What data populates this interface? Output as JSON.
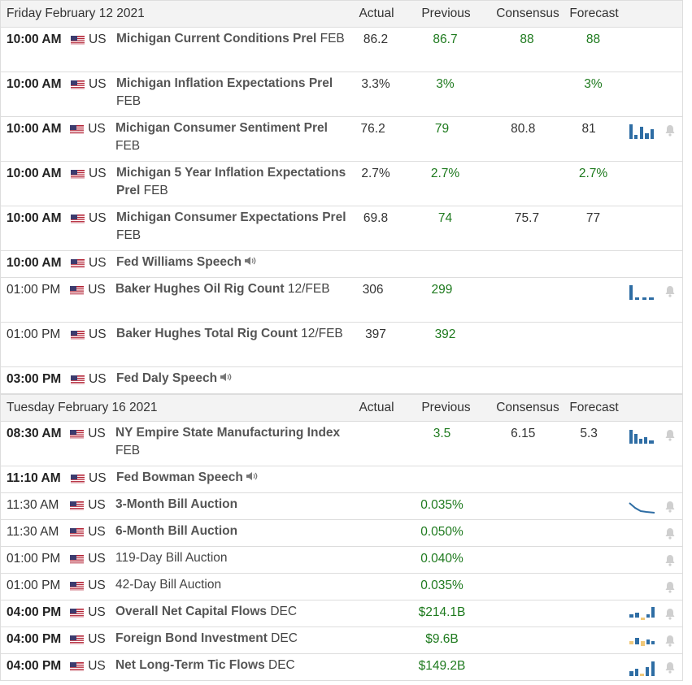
{
  "colors": {
    "accent": "#2e6da4",
    "positive": "#1e7a1e",
    "header_bg": "#f3f3f3",
    "border": "#dddddd"
  },
  "columns": {
    "actual": "Actual",
    "previous": "Previous",
    "consensus": "Consensus",
    "forecast": "Forecast"
  },
  "days": [
    {
      "date": "Friday February 12 2021",
      "events": [
        {
          "time": "10:00 AM",
          "bold": true,
          "country": "US",
          "name": "Michigan Current Conditions Prel",
          "period": "FEB",
          "actual": "86.2",
          "previous": "86.7",
          "consensus": "88",
          "forecast": "88",
          "chart": "",
          "alert": false,
          "speech": false,
          "lines": 2
        },
        {
          "time": "10:00 AM",
          "bold": true,
          "country": "US",
          "name": "Michigan Inflation Expectations Prel",
          "period": "FEB",
          "actual": "3.3%",
          "previous": "3%",
          "consensus": "",
          "forecast": "3%",
          "chart": "",
          "alert": false,
          "speech": false,
          "lines": 2
        },
        {
          "time": "10:00 AM",
          "bold": true,
          "country": "US",
          "name": "Michigan Consumer Sentiment Prel",
          "period": "FEB",
          "actual": "76.2",
          "previous": "79",
          "consensus": "80.8",
          "forecast": "81",
          "chart": "bars-1",
          "alert": true,
          "speech": false,
          "lines": 2
        },
        {
          "time": "10:00 AM",
          "bold": true,
          "country": "US",
          "name": "Michigan 5 Year Inflation Expectations Prel",
          "period": "FEB",
          "actual": "2.7%",
          "previous": "2.7%",
          "consensus": "",
          "forecast": "2.7%",
          "chart": "",
          "alert": false,
          "speech": false,
          "lines": 2
        },
        {
          "time": "10:00 AM",
          "bold": true,
          "country": "US",
          "name": "Michigan Consumer Expectations Prel",
          "period": "FEB",
          "actual": "69.8",
          "previous": "74",
          "consensus": "75.7",
          "forecast": "77",
          "chart": "",
          "alert": false,
          "speech": false,
          "lines": 2
        },
        {
          "time": "10:00 AM",
          "bold": true,
          "country": "US",
          "name": "Fed Williams Speech",
          "period": "",
          "actual": "",
          "previous": "",
          "consensus": "",
          "forecast": "",
          "chart": "",
          "alert": false,
          "speech": true,
          "lines": 1
        },
        {
          "time": "01:00 PM",
          "bold": false,
          "country": "US",
          "name": "Baker Hughes Oil Rig Count",
          "period": "12/FEB",
          "actual": "306",
          "previous": "299",
          "consensus": "",
          "forecast": "",
          "chart": "bars-2",
          "alert": true,
          "speech": false,
          "lines": 2
        },
        {
          "time": "01:00 PM",
          "bold": false,
          "country": "US",
          "name": "Baker Hughes Total Rig Count",
          "period": "12/FEB",
          "actual": "397",
          "previous": "392",
          "consensus": "",
          "forecast": "",
          "chart": "",
          "alert": false,
          "speech": false,
          "lines": 2
        },
        {
          "time": "03:00 PM",
          "bold": true,
          "country": "US",
          "name": "Fed Daly Speech",
          "period": "",
          "actual": "",
          "previous": "",
          "consensus": "",
          "forecast": "",
          "chart": "",
          "alert": false,
          "speech": true,
          "lines": 1
        }
      ]
    },
    {
      "date": "Tuesday February 16 2021",
      "events": [
        {
          "time": "08:30 AM",
          "bold": true,
          "country": "US",
          "name": "NY Empire State Manufacturing Index",
          "period": "FEB",
          "actual": "",
          "previous": "3.5",
          "consensus": "6.15",
          "forecast": "5.3",
          "chart": "bars-3",
          "alert": true,
          "speech": false,
          "lines": 2
        },
        {
          "time": "11:10 AM",
          "bold": true,
          "country": "US",
          "name": "Fed Bowman Speech",
          "period": "",
          "actual": "",
          "previous": "",
          "consensus": "",
          "forecast": "",
          "chart": "",
          "alert": false,
          "speech": true,
          "lines": 1
        },
        {
          "time": "11:30 AM",
          "bold": false,
          "country": "US",
          "name": "3-Month Bill Auction",
          "period": "",
          "actual": "",
          "previous": "0.035%",
          "consensus": "",
          "forecast": "",
          "chart": "line-1",
          "alert": true,
          "speech": false,
          "lines": 1,
          "boldname": true
        },
        {
          "time": "11:30 AM",
          "bold": false,
          "country": "US",
          "name": "6-Month Bill Auction",
          "period": "",
          "actual": "",
          "previous": "0.050%",
          "consensus": "",
          "forecast": "",
          "chart": "",
          "alert": true,
          "speech": false,
          "lines": 1,
          "boldname": true
        },
        {
          "time": "01:00 PM",
          "bold": false,
          "country": "US",
          "name": "119-Day Bill Auction",
          "period": "",
          "actual": "",
          "previous": "0.040%",
          "consensus": "",
          "forecast": "",
          "chart": "",
          "alert": true,
          "speech": false,
          "lines": 1,
          "boldname": false
        },
        {
          "time": "01:00 PM",
          "bold": false,
          "country": "US",
          "name": "42-Day Bill Auction",
          "period": "",
          "actual": "",
          "previous": "0.035%",
          "consensus": "",
          "forecast": "",
          "chart": "",
          "alert": true,
          "speech": false,
          "lines": 1,
          "boldname": false
        },
        {
          "time": "04:00 PM",
          "bold": true,
          "country": "US",
          "name": "Overall Net Capital Flows",
          "period": "DEC",
          "actual": "",
          "previous": "$214.1B",
          "consensus": "",
          "forecast": "",
          "chart": "mix-1",
          "alert": true,
          "speech": false,
          "lines": 1
        },
        {
          "time": "04:00 PM",
          "bold": true,
          "country": "US",
          "name": "Foreign Bond Investment",
          "period": "DEC",
          "actual": "",
          "previous": "$9.6B",
          "consensus": "",
          "forecast": "",
          "chart": "mix-2",
          "alert": true,
          "speech": false,
          "lines": 1
        },
        {
          "time": "04:00 PM",
          "bold": true,
          "country": "US",
          "name": "Net Long-Term Tic Flows",
          "period": "DEC",
          "actual": "",
          "previous": "$149.2B",
          "consensus": "",
          "forecast": "",
          "chart": "bars-4",
          "alert": true,
          "speech": false,
          "lines": 1
        }
      ]
    }
  ]
}
